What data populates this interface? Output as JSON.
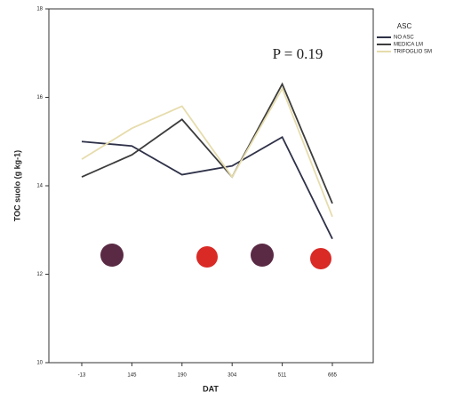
{
  "chart_data": {
    "type": "line",
    "y_label": "TOC suolo (g kg-1)",
    "x_label": "DAT",
    "annotation": "P = 0.19",
    "legend_title": "ASC",
    "categories": [
      "-13",
      "145",
      "190",
      "304",
      "511",
      "665"
    ],
    "series": [
      {
        "name": "NO ASC",
        "color": "#2e3148",
        "values": [
          15.0,
          14.9,
          14.25,
          14.45,
          15.1,
          12.8
        ]
      },
      {
        "name": "MEDICA LM",
        "color": "#3c3c3c",
        "values": [
          14.2,
          14.7,
          15.5,
          14.2,
          16.3,
          13.6
        ]
      },
      {
        "name": "TRIFOGLIO SM",
        "color": "#e6dcac",
        "values": [
          14.6,
          15.3,
          15.8,
          14.2,
          16.2,
          13.3
        ]
      }
    ],
    "ylim": [
      10,
      18
    ],
    "yticks": [
      10,
      12,
      14,
      16,
      18
    ],
    "legend": "right"
  }
}
